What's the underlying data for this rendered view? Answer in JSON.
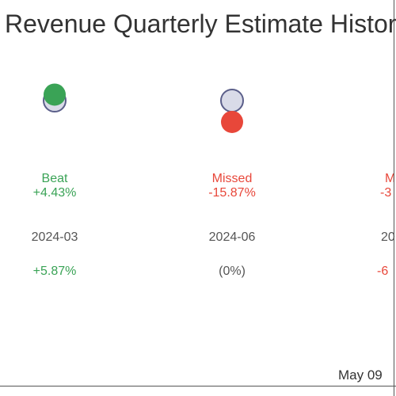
{
  "chart_data": {
    "type": "scatter",
    "title": "Revenue Quarterly Estimate History",
    "columns": [
      {
        "status": "Beat",
        "surprise": "+4.43%",
        "period": "2024-03",
        "change": "+5.87%",
        "status_color": "#3aa356",
        "change_color": "#3aa356",
        "estimate": 1.0,
        "actual": 1.0443
      },
      {
        "status": "Missed",
        "surprise": "-15.87%",
        "period": "2024-06",
        "change": "(0%)",
        "status_color": "#e8473a",
        "change_color": "#555555",
        "estimate": 1.0,
        "actual": 0.8413
      },
      {
        "status": "Missed",
        "surprise": "-3",
        "period": "20",
        "change": "-6",
        "status_color": "#e8473a",
        "change_color": "#e8473a",
        "estimate": null,
        "actual": null
      }
    ],
    "footer_date": "May 09",
    "estimate_color": "#d9dbe8",
    "beat_color": "#3aa356",
    "missed_color": "#e8473a"
  }
}
